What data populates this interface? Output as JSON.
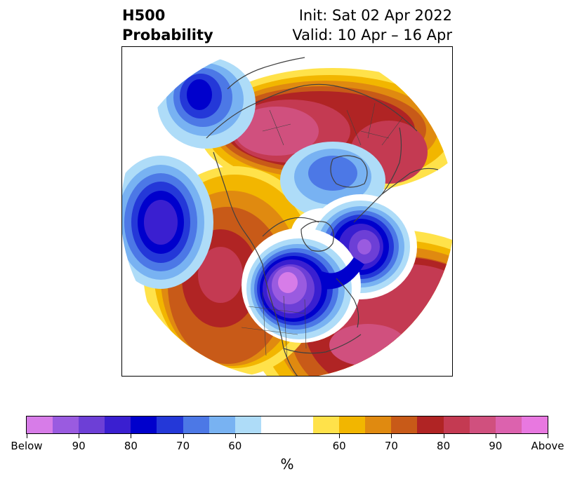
{
  "title": {
    "left_line1": "H500",
    "left_line2": "Probability",
    "right_line1": "Init: Sat 02 Apr 2022",
    "right_line2": "Valid: 10 Apr – 16 Apr"
  },
  "map": {
    "projection": "north-polar-stereographic",
    "background": "#ffffff",
    "coastline_color": "#404040",
    "anomalies": [
      {
        "name": "north-pacific-high",
        "sign": "above",
        "peak_percent": 90
      },
      {
        "name": "gulf-of-alaska-low",
        "sign": "below",
        "peak_percent": 80
      },
      {
        "name": "central-pacific-low",
        "sign": "below",
        "peak_percent": 90
      },
      {
        "name": "western-north-america-ridge",
        "sign": "above",
        "peak_percent": 80
      },
      {
        "name": "eastern-canada-trough",
        "sign": "below",
        "peak_percent": 100
      },
      {
        "name": "north-atlantic-low",
        "sign": "below",
        "peak_percent": 90
      },
      {
        "name": "north-atlantic-ridge",
        "sign": "above",
        "peak_percent": 90
      },
      {
        "name": "arctic-low",
        "sign": "below",
        "peak_percent": 60
      },
      {
        "name": "greenland-high",
        "sign": "above",
        "peak_percent": 60
      }
    ]
  },
  "colorbar": {
    "unit_label": "%",
    "colors": [
      "#d77ce8",
      "#9a5be0",
      "#6d3fd6",
      "#3a1fd0",
      "#0000cc",
      "#2438d8",
      "#4c78e6",
      "#78b2f2",
      "#aedcf8",
      "#ffffff",
      "#ffe24a",
      "#f2b600",
      "#e08a10",
      "#c85a18",
      "#b02424",
      "#c43a52",
      "#d0507e",
      "#dc62ae",
      "#e878e0"
    ],
    "tick_labels": [
      "Below",
      "90",
      "80",
      "70",
      "60",
      "60",
      "70",
      "80",
      "90",
      "Above"
    ]
  }
}
